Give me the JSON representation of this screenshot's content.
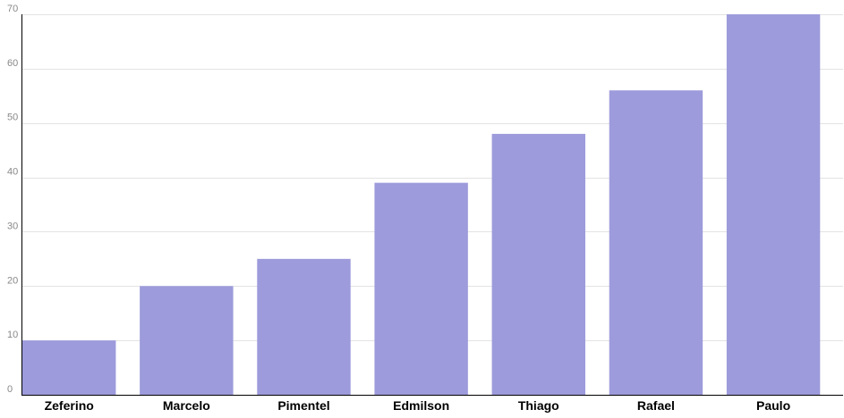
{
  "chart_data": {
    "type": "bar",
    "categories": [
      "Zeferino",
      "Marcelo",
      "Pimentel",
      "Edmilson",
      "Thiago",
      "Rafael",
      "Paulo"
    ],
    "values": [
      10,
      20,
      25,
      39,
      48,
      56,
      70
    ],
    "yticks": [
      0,
      10,
      20,
      30,
      40,
      50,
      60,
      70
    ],
    "ylim": [
      0,
      70
    ],
    "grid": true,
    "legend": "none",
    "colors": {
      "bar": "#9d9bdb",
      "grid": "#e3e3e3",
      "axis": "#000000",
      "tick_text": "#888888",
      "label_text": "#000000"
    }
  }
}
